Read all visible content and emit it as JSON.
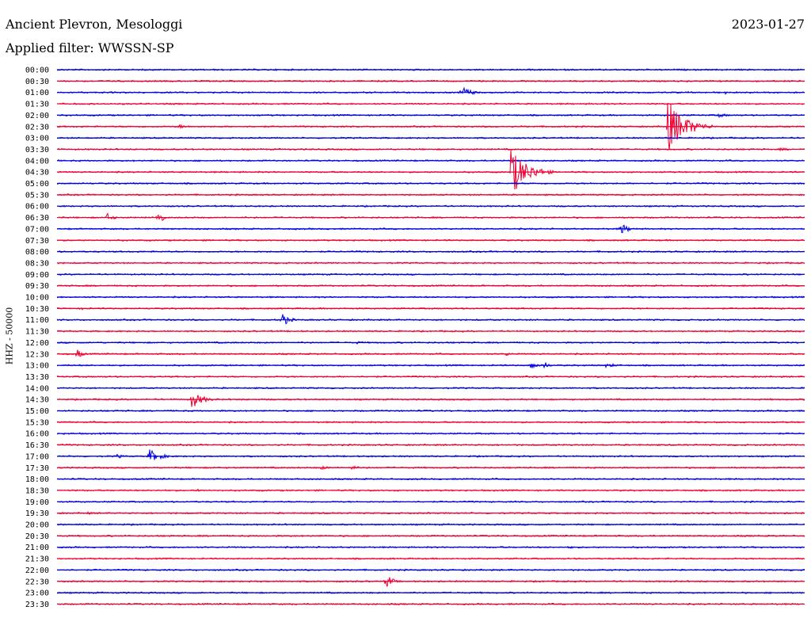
{
  "header": {
    "station": "Ancient Plevron, Mesologgi",
    "filter": "Applied filter: WWSSN-SP",
    "date": "2023-01-27"
  },
  "chart_data": {
    "type": "line",
    "title": "Ancient Plevron, Mesologgi",
    "subtitle": "Applied filter: WWSSN-SP",
    "date": "2023-01-27",
    "ylabel": "HHZ - 50000",
    "line_colors": [
      "#0000dd",
      "#ee0033"
    ],
    "traces": [
      "00:00",
      "00:30",
      "01:00",
      "01:30",
      "02:00",
      "02:30",
      "03:00",
      "03:30",
      "04:00",
      "04:30",
      "05:00",
      "05:30",
      "06:00",
      "06:30",
      "07:00",
      "07:30",
      "08:00",
      "08:30",
      "09:00",
      "09:30",
      "10:00",
      "10:30",
      "11:00",
      "11:30",
      "12:00",
      "12:30",
      "13:00",
      "13:30",
      "14:00",
      "14:30",
      "15:00",
      "15:30",
      "16:00",
      "16:30",
      "17:00",
      "17:30",
      "18:00",
      "18:30",
      "19:00",
      "19:30",
      "20:00",
      "20:30",
      "21:00",
      "21:30",
      "22:00",
      "22:30",
      "23:00",
      "23:30"
    ],
    "events": [
      {
        "trace": "01:00",
        "minute": 16.2,
        "amplitude": 9,
        "duration": 1.0
      },
      {
        "trace": "01:00",
        "minute": 26.8,
        "amplitude": 3,
        "duration": 0.2
      },
      {
        "trace": "01:00",
        "minute": 25.3,
        "amplitude": 2,
        "duration": 0.2
      },
      {
        "trace": "02:00",
        "minute": 26.5,
        "amplitude": 3,
        "duration": 1.3
      },
      {
        "trace": "02:30",
        "minute": 4.8,
        "amplitude": 3,
        "duration": 1.6
      },
      {
        "trace": "02:30",
        "minute": 24.5,
        "amplitude": 35,
        "duration": 1.8
      },
      {
        "trace": "03:30",
        "minute": 29.0,
        "amplitude": 2,
        "duration": 1.5
      },
      {
        "trace": "04:30",
        "minute": 18.2,
        "amplitude": 32,
        "duration": 1.7
      },
      {
        "trace": "05:00",
        "minute": 30.5,
        "amplitude": 2,
        "duration": 0.5
      },
      {
        "trace": "05:30",
        "minute": 12.2,
        "amplitude": 2,
        "duration": 0.4
      },
      {
        "trace": "06:30",
        "minute": 2.0,
        "amplitude": 6,
        "duration": 0.7
      },
      {
        "trace": "06:30",
        "minute": 4.0,
        "amplitude": 5,
        "duration": 0.4
      },
      {
        "trace": "06:30",
        "minute": 4.2,
        "amplitude": 6,
        "duration": 0.3
      },
      {
        "trace": "07:00",
        "minute": 22.6,
        "amplitude": 8,
        "duration": 0.9
      },
      {
        "trace": "10:30",
        "minute": 1.0,
        "amplitude": 2,
        "duration": 0.5
      },
      {
        "trace": "11:00",
        "minute": 9.0,
        "amplitude": 10,
        "duration": 0.8
      },
      {
        "trace": "12:00",
        "minute": 12.0,
        "amplitude": 2,
        "duration": 1.2
      },
      {
        "trace": "12:30",
        "minute": 0.8,
        "amplitude": 8,
        "duration": 0.5
      },
      {
        "trace": "12:30",
        "minute": 18.0,
        "amplitude": 3,
        "duration": 0.6
      },
      {
        "trace": "13:00",
        "minute": 19.0,
        "amplitude": 7,
        "duration": 0.6
      },
      {
        "trace": "13:00",
        "minute": 19.5,
        "amplitude": 7,
        "duration": 0.5
      },
      {
        "trace": "13:00",
        "minute": 22.0,
        "amplitude": 3,
        "duration": 1.4
      },
      {
        "trace": "14:30",
        "minute": 5.4,
        "amplitude": 12,
        "duration": 1.1
      },
      {
        "trace": "17:00",
        "minute": 3.7,
        "amplitude": 9,
        "duration": 1.2
      },
      {
        "trace": "17:00",
        "minute": 2.4,
        "amplitude": 3,
        "duration": 0.8
      },
      {
        "trace": "17:30",
        "minute": 10.5,
        "amplitude": 3,
        "duration": 1.2
      },
      {
        "trace": "17:30",
        "minute": 11.8,
        "amplitude": 3,
        "duration": 1.0
      },
      {
        "trace": "18:00",
        "minute": 21.6,
        "amplitude": 2,
        "duration": 0.2
      },
      {
        "trace": "18:30",
        "minute": 5.6,
        "amplitude": 2,
        "duration": 0.7
      },
      {
        "trace": "19:30",
        "minute": 1.2,
        "amplitude": 2,
        "duration": 0.8
      },
      {
        "trace": "21:00",
        "minute": 20.5,
        "amplitude": 2,
        "duration": 1.0
      },
      {
        "trace": "22:30",
        "minute": 13.2,
        "amplitude": 12,
        "duration": 0.6
      }
    ]
  }
}
